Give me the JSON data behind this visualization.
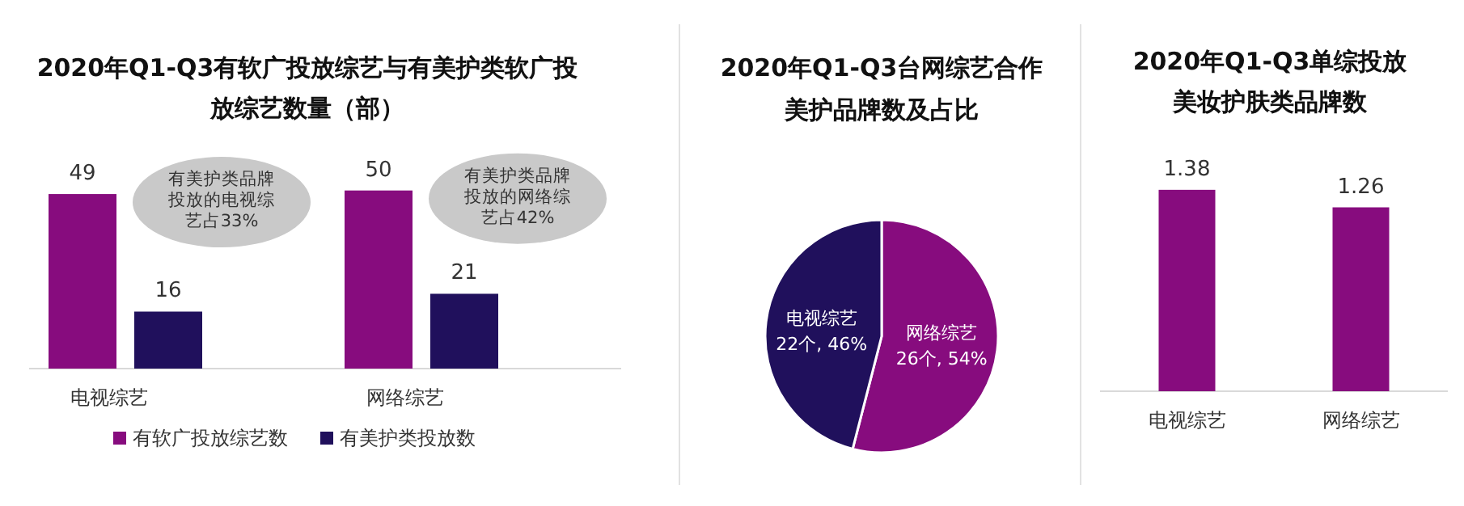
{
  "chart_data": [
    {
      "type": "bar",
      "title": "2020年Q1-Q3有软广投放综艺与有美护类软广投放综艺数量（部）",
      "categories": [
        "电视综艺",
        "网络综艺"
      ],
      "series": [
        {
          "name": "有软广投放综艺数",
          "color": "#870c7e",
          "values": [
            49,
            50
          ]
        },
        {
          "name": "有美护类投放数",
          "color": "#20105c",
          "values": [
            16,
            21
          ]
        }
      ],
      "data_labels": true,
      "legend": "bottom",
      "annotations": [
        "有美护类品牌投放的电视综艺占33%",
        "有美护类品牌投放的网络综艺占42%"
      ]
    },
    {
      "type": "pie",
      "title": "2020年Q1-Q3台网综艺合作美护品牌数及占比",
      "categories": [
        "电视综艺",
        "网络综艺"
      ],
      "values": [
        46,
        54
      ],
      "colors": [
        "#20105c",
        "#870c7e"
      ],
      "value_labels": [
        "22个, 46%",
        "26个, 54%"
      ]
    },
    {
      "type": "bar",
      "title": "2020年Q1-Q3单综投放美妆护肤类品牌数",
      "categories": [
        "电视综艺",
        "网络综艺"
      ],
      "values": [
        1.38,
        1.26
      ],
      "color": "#870c7e",
      "data_labels": true
    }
  ]
}
